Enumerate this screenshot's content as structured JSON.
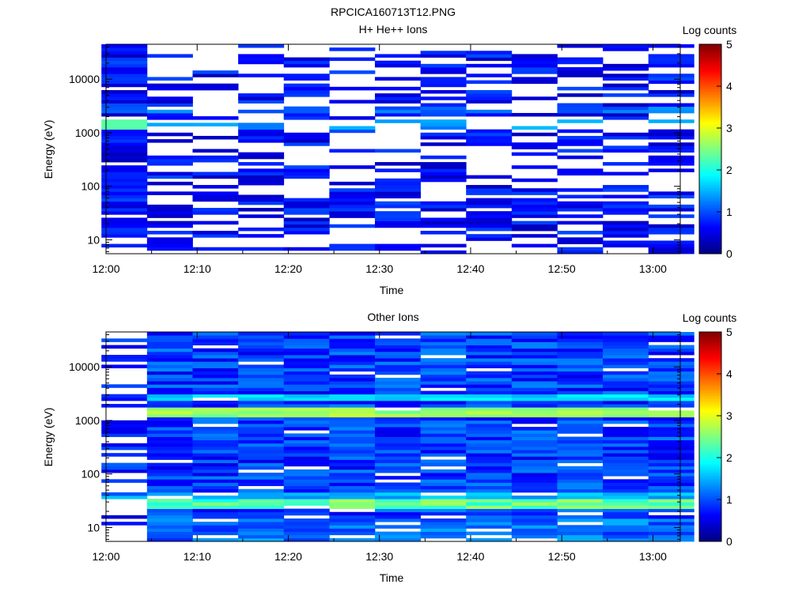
{
  "figure_title": "RPCICA160713T12.PNG",
  "chart_data": [
    {
      "type": "heatmap",
      "title": "H+ He++ Ions",
      "xlabel": "Time",
      "ylabel": "Energy (eV)",
      "colorbar_label": "Log counts",
      "yscale": "log",
      "x_ticks": [
        "12:00",
        "12:10",
        "12:20",
        "12:30",
        "12:40",
        "12:50",
        "13:00"
      ],
      "y_ticks": [
        "10",
        "100",
        "1000",
        "10000"
      ],
      "colorbar_ticks": [
        "0",
        "1",
        "2",
        "3",
        "4",
        "5"
      ],
      "x_range": [
        "12:00",
        "13:03"
      ],
      "y_range_eV": [
        5.5,
        45000
      ],
      "z_range": [
        0,
        5
      ],
      "time_bins": [
        "12:02",
        "12:07",
        "12:12",
        "12:17",
        "12:22",
        "12:27",
        "12:32",
        "12:37",
        "12:42",
        "12:47",
        "12:52",
        "12:57",
        "13:02"
      ],
      "notes": "Sparse spectrogram: first column (12:02) dense; strongest band near 1300-1500 eV reaching ~2.3 log counts; most pixels 0.3-1.0 log counts; many empty bins."
    },
    {
      "type": "heatmap",
      "title": "Other Ions",
      "xlabel": "Time",
      "ylabel": "Energy (eV)",
      "colorbar_label": "Log counts",
      "yscale": "log",
      "x_ticks": [
        "12:00",
        "12:10",
        "12:20",
        "12:30",
        "12:40",
        "12:50",
        "13:00"
      ],
      "y_ticks": [
        "10",
        "100",
        "1000",
        "10000"
      ],
      "colorbar_ticks": [
        "0",
        "1",
        "2",
        "3",
        "4",
        "5"
      ],
      "x_range": [
        "12:00",
        "13:03"
      ],
      "y_range_eV": [
        5.5,
        45000
      ],
      "z_range": [
        0,
        5
      ],
      "time_bins": [
        "12:02",
        "12:07",
        "12:12",
        "12:17",
        "12:22",
        "12:27",
        "12:32",
        "12:37",
        "12:42",
        "12:47",
        "12:52",
        "12:57",
        "13:02"
      ],
      "notes": "Dense spectrogram from 12:05 onward; strong band near 1300-1700 eV (~2.5-3.0 log counts); secondary band near 25-35 eV (~2.0-2.8 log counts); background 0.3-1.2 log counts."
    }
  ],
  "colormap": [
    "#00008f",
    "#0000ff",
    "#0080ff",
    "#00ffff",
    "#80ff80",
    "#ffff00",
    "#ff8000",
    "#ff0000",
    "#800000"
  ]
}
